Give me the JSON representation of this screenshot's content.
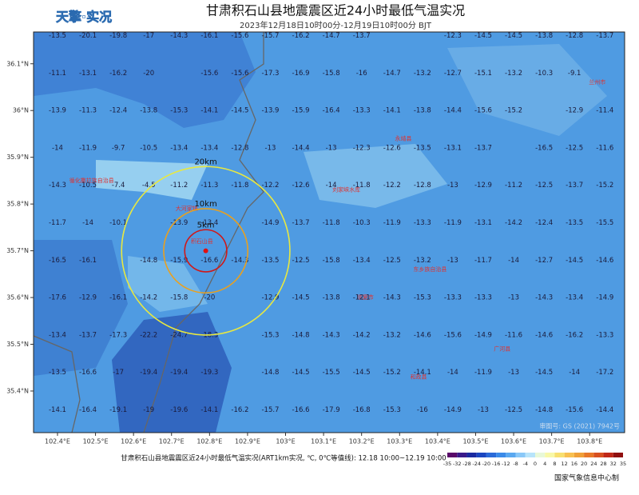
{
  "header": {
    "logo": "天擎·实况",
    "title": "甘肃积石山县地震震区近24小时最低气温实况",
    "subtitle": "2023年12月18日10时00分-12月19日10时00分 BJT"
  },
  "map": {
    "xlim": [
      102.337,
      103.892
    ],
    "ylim": [
      35.311,
      36.168
    ],
    "xticks": [
      {
        "value": 102.4,
        "label": "102.4°E"
      },
      {
        "value": 102.5,
        "label": "102.5°E"
      },
      {
        "value": 102.6,
        "label": "102.6°E"
      },
      {
        "value": 102.7,
        "label": "102.7°E"
      },
      {
        "value": 102.8,
        "label": "102.8°E"
      },
      {
        "value": 102.9,
        "label": "102.9°E"
      },
      {
        "value": 103,
        "label": "103°E"
      },
      {
        "value": 103.1,
        "label": "103.1°E"
      },
      {
        "value": 103.2,
        "label": "103.2°E"
      },
      {
        "value": 103.3,
        "label": "103.3°E"
      },
      {
        "value": 103.4,
        "label": "103.4°E"
      },
      {
        "value": 103.5,
        "label": "103.5°E"
      },
      {
        "value": 103.6,
        "label": "103.6°E"
      },
      {
        "value": 103.7,
        "label": "103.7°E"
      },
      {
        "value": 103.8,
        "label": "103.8°E"
      }
    ],
    "yticks": [
      {
        "value": 35.4,
        "label": "35.4°N"
      },
      {
        "value": 35.5,
        "label": "35.5°N"
      },
      {
        "value": 35.6,
        "label": "35.6°N"
      },
      {
        "value": 35.7,
        "label": "35.7°N"
      },
      {
        "value": 35.8,
        "label": "35.8°N"
      },
      {
        "value": 35.9,
        "label": "35.9°N"
      },
      {
        "value": 36,
        "label": "36°N"
      },
      {
        "value": 36.1,
        "label": "36.1°N"
      }
    ],
    "grid": {
      "lon0": 102.4,
      "lat0": 36.16,
      "step": 0.08,
      "rows": [
        [
          -13.5,
          -20.1,
          -19.8,
          -17,
          -14.3,
          -16.1,
          -15.6,
          -15.7,
          -16.2,
          -14.7,
          -13.7,
          null,
          null,
          -12.3,
          -14.5,
          -14.5,
          -13.8,
          -12.8,
          -13.7
        ],
        [
          -11.1,
          -13.1,
          -16.2,
          -20,
          null,
          -15.6,
          -15.6,
          -17.3,
          -16.9,
          -15.8,
          -16,
          -14.7,
          -13.2,
          -12.7,
          -15.1,
          -13.2,
          -10.3,
          -9.1,
          null
        ],
        [
          -13.9,
          -11.3,
          -12.4,
          -13.8,
          -15.3,
          -14.1,
          -14.5,
          -13.9,
          -15.9,
          -16.4,
          -13.3,
          -14.1,
          -13.8,
          -14.4,
          -15.6,
          -15.2,
          null,
          -12.9,
          -11.4
        ],
        [
          -14,
          -11.9,
          -9.7,
          -10.5,
          -13.4,
          -13.4,
          -12.8,
          -13,
          -14.4,
          -13,
          -12.3,
          -12.6,
          -13.5,
          -13.1,
          -13.7,
          null,
          -16.5,
          -12.5,
          -11.6
        ],
        [
          -14.3,
          -10.5,
          -7.4,
          -4.5,
          -11.2,
          -11.3,
          -11.8,
          -12.2,
          -12.6,
          -14,
          -11.8,
          -12.2,
          -12.8,
          -13,
          -12.9,
          -11.2,
          -12.5,
          -13.7,
          -15.2
        ],
        [
          -11.7,
          -14,
          -10.1,
          null,
          -13.9,
          -13.4,
          null,
          -14.9,
          -13.7,
          -11.8,
          -10.3,
          -11.9,
          -13.3,
          -11.9,
          -13.1,
          -14.2,
          -12.4,
          -13.5,
          -15.5
        ],
        [
          -16.5,
          -16.1,
          null,
          -14.8,
          -15.9,
          -16.6,
          -14.3,
          -13.5,
          -12.5,
          -15.8,
          -13.4,
          -12.5,
          -13.2,
          -13,
          -11.7,
          -14,
          -12.7,
          -14.5,
          -14.6
        ],
        [
          -17.6,
          -12.9,
          -16.1,
          -14.2,
          -15.8,
          -20,
          null,
          -12.9,
          -14.5,
          -13.8,
          -12.1,
          -14.3,
          -15.3,
          -13.3,
          -13.3,
          -13,
          -14.3,
          -13.4,
          -14.9
        ],
        [
          -13.4,
          -13.7,
          -17.3,
          -22.2,
          -24.7,
          -18.3,
          null,
          -15.3,
          -14.8,
          -14.3,
          -14.2,
          -13.2,
          -14.6,
          -15.6,
          -14.9,
          -11.6,
          -14.6,
          -16.2,
          -13.3
        ],
        [
          -13.5,
          -16.6,
          -17,
          -19.4,
          -19.4,
          -19.3,
          null,
          -14.8,
          -14.5,
          -15.5,
          -14.5,
          -15.2,
          -14.1,
          -14,
          -11.9,
          -13,
          -14.5,
          -14,
          -17.2
        ],
        [
          -14.1,
          -16.4,
          -19.1,
          -19,
          -19.6,
          -14.1,
          -16.2,
          -15.7,
          -16.6,
          -17.9,
          -16.8,
          -15.3,
          -16,
          -14.9,
          -13,
          -12.5,
          -14.8,
          -15.6,
          -14.4
        ]
      ]
    },
    "epicenter": {
      "lon": 102.79,
      "lat": 35.7,
      "color": "#e01010"
    },
    "rings": [
      {
        "label": "5km",
        "radius_km": 5,
        "color": "#d01818"
      },
      {
        "label": "10km",
        "radius_km": 10,
        "color": "#e8a020"
      },
      {
        "label": "20km",
        "radius_km": 20,
        "color": "#e8e840"
      }
    ],
    "places": [
      {
        "name": "兰州市",
        "lon": 103.82,
        "lat": 36.06
      },
      {
        "name": "刘家峡水库",
        "lon": 103.16,
        "lat": 35.83
      },
      {
        "name": "临夏市",
        "lon": 103.21,
        "lat": 35.6
      },
      {
        "name": "积石山县",
        "lon": 102.78,
        "lat": 35.72
      },
      {
        "name": "永靖县",
        "lon": 103.31,
        "lat": 35.94
      },
      {
        "name": "东乡族自治县",
        "lon": 103.38,
        "lat": 35.66
      },
      {
        "name": "和政县",
        "lon": 103.35,
        "lat": 35.43
      },
      {
        "name": "广河县",
        "lon": 103.57,
        "lat": 35.49
      },
      {
        "name": "大河家镇",
        "lon": 102.74,
        "lat": 35.79
      },
      {
        "name": "循化撒拉族自治县",
        "lon": 102.49,
        "lat": 35.85
      }
    ],
    "copyright": "审图号: GS (2021) 7942号"
  },
  "footer": {
    "caption": "甘肃积石山县地震震区近24小时最低气温实况(ART1km实况, ℃, 0℃等值线): 12.18 10:00~12.19 10:00",
    "credit": "国家气象信息中心制"
  },
  "colorbar": {
    "ticks": [
      -35,
      -32,
      -28,
      -24,
      -20,
      -16,
      -12,
      -8,
      -4,
      0,
      4,
      8,
      12,
      16,
      20,
      24,
      28,
      32,
      35
    ],
    "colors": [
      "#5a0a6a",
      "#3a1a8a",
      "#1a2aa0",
      "#1a46c0",
      "#2a6ad8",
      "#3a8ae8",
      "#5aa8f0",
      "#8ac8f8",
      "#b8e4fa",
      "#e8f8d8",
      "#f8f8a8",
      "#f8e070",
      "#f8c050",
      "#f0a038",
      "#e87828",
      "#d85020",
      "#c02818",
      "#901010"
    ]
  }
}
